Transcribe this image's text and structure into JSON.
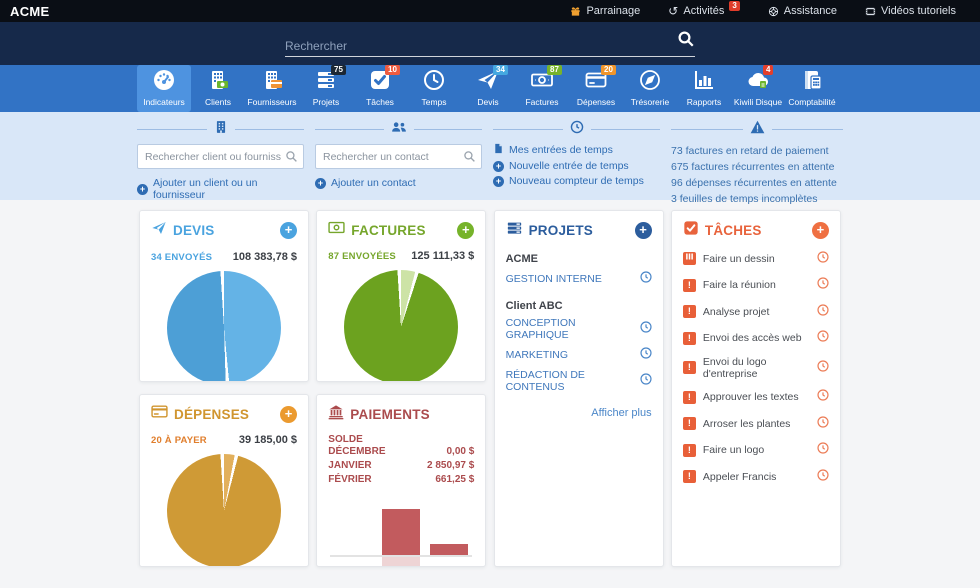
{
  "topbar": {
    "brand": "ACME",
    "items": [
      {
        "icon": "gift-icon",
        "label": "Parrainage"
      },
      {
        "icon": "history-icon",
        "label": "Activités",
        "badge": "3"
      },
      {
        "icon": "lifebuoy-icon",
        "label": "Assistance"
      },
      {
        "icon": "film-icon",
        "label": "Vidéos tutoriels"
      }
    ]
  },
  "search": {
    "placeholder": "Rechercher"
  },
  "nav": {
    "items": [
      {
        "icon": "gauge-icon",
        "label": "Indicateurs",
        "active": true
      },
      {
        "icon": "clients-building-icon",
        "label": "Clients"
      },
      {
        "icon": "suppliers-building-icon",
        "label": "Fournisseurs"
      },
      {
        "icon": "project-list-icon",
        "label": "Projets",
        "badge": "75",
        "badge_color": "#1c2733"
      },
      {
        "icon": "check-square-icon",
        "label": "Tâches",
        "badge": "10",
        "badge_color": "#ef5b40"
      },
      {
        "icon": "clock-icon",
        "label": "Temps"
      },
      {
        "icon": "paper-plane-icon",
        "label": "Devis",
        "badge": "34",
        "badge_color": "#45a8e0"
      },
      {
        "icon": "banknote-icon",
        "label": "Factures",
        "badge": "87",
        "badge_color": "#77b32b"
      },
      {
        "icon": "credit-card-icon",
        "label": "Dépenses",
        "badge": "20",
        "badge_color": "#f0952b"
      },
      {
        "icon": "compass-icon",
        "label": "Trésorerie"
      },
      {
        "icon": "bar-chart-icon",
        "label": "Rapports"
      },
      {
        "icon": "cloud-icon",
        "label": "Kiwili Disque",
        "badge": "4",
        "badge_color": "#e43e2b"
      },
      {
        "icon": "ledger-icon",
        "label": "Comptabilité"
      }
    ]
  },
  "quick": {
    "client_search_placeholder": "Rechercher client ou fournisseur",
    "add_client_label": "Ajouter un client ou un fournisseur",
    "contact_search_placeholder": "Rechercher un contact",
    "add_contact_label": "Ajouter un contact",
    "time_links": [
      "Mes entrées de temps",
      "Nouvelle entrée de temps",
      "Nouveau compteur de temps"
    ],
    "alerts": [
      "73 factures en retard de paiement",
      "675 factures récurrentes en attente",
      "96 dépenses récurrentes en attente",
      "3 feuilles de temps incomplètes"
    ]
  },
  "cards": {
    "devis": {
      "title": "DEVIS",
      "stat_label": "34 ENVOYÉS",
      "stat_value": "108 383,78 $",
      "accent": "#4aa3df"
    },
    "factures": {
      "title": "FACTURES",
      "stat_label": "87 ENVOYÉES",
      "stat_value": "125 111,33 $",
      "accent": "#76a62c"
    },
    "projets": {
      "title": "PROJETS",
      "groups": [
        {
          "client": "ACME",
          "projects": [
            "GESTION INTERNE"
          ]
        },
        {
          "client": "Client ABC",
          "projects": [
            "CONCEPTION GRAPHIQUE",
            "MARKETING",
            "RÉDACTION DE CONTENUS"
          ]
        }
      ],
      "more_label": "Afficher plus",
      "accent": "#2c5d9d"
    },
    "taches": {
      "title": "TÂCHES",
      "items": [
        "Faire un dessin",
        "Faire la réunion",
        "Analyse projet",
        "Envoi des accès web",
        "Envoi du logo d'entreprise",
        "Approuver les textes",
        "Arroser les plantes",
        "Faire un logo",
        "Appeler Francis"
      ],
      "accent": "#e8633c"
    },
    "depenses": {
      "title": "DÉPENSES",
      "stat_label": "20 À PAYER",
      "stat_value": "39 185,00 $",
      "accent": "#d0952f"
    },
    "paiements": {
      "title": "PAIEMENTS",
      "solde_label": "SOLDE",
      "rows": [
        {
          "label": "DÉCEMBRE",
          "value": "0,00 $"
        },
        {
          "label": "JANVIER",
          "value": "2 850,97 $"
        },
        {
          "label": "FÉVRIER",
          "value": "661,25 $"
        }
      ],
      "accent": "#ab4b4d"
    }
  },
  "chart_data": [
    {
      "type": "pie",
      "name": "devis",
      "title": "DEVIS",
      "summary_label": "34 ENVOYÉS",
      "summary_value": "108 383,78 $",
      "slices": [
        {
          "color": "#64b3e6",
          "value": 48.5
        },
        {
          "color": "#ffffff",
          "value": 1
        },
        {
          "color": "#4d9fd6",
          "value": 49.5
        },
        {
          "color": "#ffffff",
          "value": 1
        }
      ]
    },
    {
      "type": "pie",
      "name": "factures",
      "title": "FACTURES",
      "summary_label": "87 ENVOYÉES",
      "summary_value": "125 111,33 $",
      "slices": [
        {
          "color": "#cde3a6",
          "value": 4
        },
        {
          "color": "#ffffff",
          "value": 1
        },
        {
          "color": "#6ca21f",
          "value": 94
        },
        {
          "color": "#ffffff",
          "value": 1
        }
      ]
    },
    {
      "type": "pie",
      "name": "depenses",
      "title": "DÉPENSES",
      "summary_label": "20 À PAYER",
      "summary_value": "39 185,00 $",
      "slices": [
        {
          "color": "#e2b05c",
          "value": 3
        },
        {
          "color": "#ffffff",
          "value": 1
        },
        {
          "color": "#cf9a36",
          "value": 95
        },
        {
          "color": "#ffffff",
          "value": 1
        }
      ]
    },
    {
      "type": "bar",
      "name": "paiements",
      "title": "PAIEMENTS",
      "categories": [
        "Déc.",
        "Janv.",
        "Févr."
      ],
      "values": [
        0,
        2850.97,
        661.25
      ],
      "value_labels": [
        "0,00 $",
        "2 850,97 $",
        "661,25 $"
      ],
      "ylim": [
        0,
        2850.97
      ],
      "bar_color": "#c25b5e",
      "reflection_index": 1
    }
  ]
}
